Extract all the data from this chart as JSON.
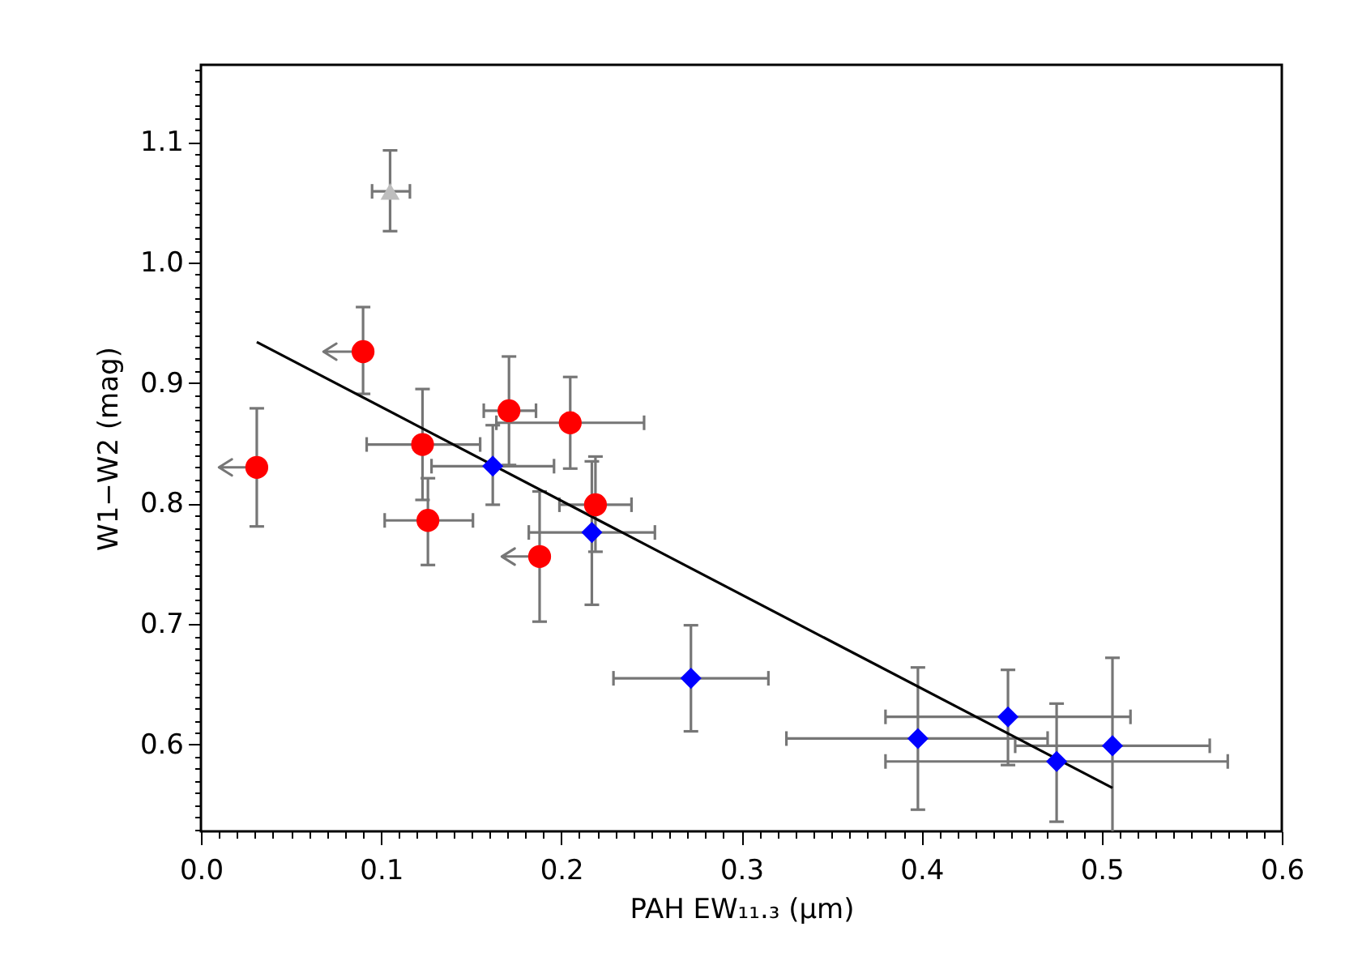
{
  "chart_data": {
    "type": "scatter",
    "xlabel": "PAH EW₁₁.₃ (μm)",
    "ylabel": "W1−W2 (mag)",
    "xlim": [
      0,
      0.6
    ],
    "ylim": [
      0.528,
      1.164
    ],
    "xticks": [
      {
        "value": 0,
        "label": "0.0"
      },
      {
        "value": 0.01,
        "label": null
      },
      {
        "value": 0.02,
        "label": null
      },
      {
        "value": 0.03,
        "label": null
      },
      {
        "value": 0.04,
        "label": null
      },
      {
        "value": 0.05,
        "label": null
      },
      {
        "value": 0.06,
        "label": null
      },
      {
        "value": 0.07,
        "label": null
      },
      {
        "value": 0.08,
        "label": null
      },
      {
        "value": 0.09,
        "label": null
      },
      0.1,
      {
        "value": 0.11,
        "label": null
      },
      {
        "value": 0.12,
        "label": null
      },
      {
        "value": 0.13,
        "label": null
      },
      {
        "value": 0.14,
        "label": null
      },
      {
        "value": 0.15,
        "label": null
      },
      {
        "value": 0.16,
        "label": null
      },
      {
        "value": 0.17,
        "label": null
      },
      {
        "value": 0.18,
        "label": null
      },
      {
        "value": 0.19,
        "label": null
      },
      0.2,
      {
        "value": 0.21,
        "label": null
      },
      {
        "value": 0.22,
        "label": null
      },
      {
        "value": 0.23,
        "label": null
      },
      {
        "value": 0.24,
        "label": null
      },
      {
        "value": 0.25,
        "label": null
      },
      {
        "value": 0.26,
        "label": null
      },
      {
        "value": 0.27,
        "label": null
      },
      {
        "value": 0.28,
        "label": null
      },
      {
        "value": 0.29,
        "label": null
      },
      0.3,
      {
        "value": 0.31,
        "label": null
      },
      {
        "value": 0.32,
        "label": null
      },
      {
        "value": 0.33,
        "label": null
      },
      {
        "value": 0.34,
        "label": null
      },
      {
        "value": 0.35,
        "label": null
      },
      {
        "value": 0.36,
        "label": null
      },
      {
        "value": 0.37,
        "label": null
      },
      {
        "value": 0.38,
        "label": null
      },
      {
        "value": 0.39,
        "label": null
      },
      0.4,
      {
        "value": 0.41,
        "label": null
      },
      {
        "value": 0.42,
        "label": null
      },
      {
        "value": 0.43,
        "label": null
      },
      {
        "value": 0.44,
        "label": null
      },
      {
        "value": 0.45,
        "label": null
      },
      {
        "value": 0.46,
        "label": null
      },
      {
        "value": 0.47,
        "label": null
      },
      {
        "value": 0.48,
        "label": null
      },
      {
        "value": 0.49,
        "label": null
      },
      0.5,
      {
        "value": 0.51,
        "label": null
      },
      {
        "value": 0.52,
        "label": null
      },
      {
        "value": 0.53,
        "label": null
      },
      {
        "value": 0.54,
        "label": null
      },
      {
        "value": 0.55,
        "label": null
      },
      {
        "value": 0.56,
        "label": null
      },
      {
        "value": 0.57,
        "label": null
      },
      {
        "value": 0.58,
        "label": null
      },
      {
        "value": 0.59,
        "label": null
      },
      0.6
    ],
    "yticks": [
      {
        "value": 0.53,
        "label": null
      },
      {
        "value": 0.54,
        "label": null
      },
      {
        "value": 0.55,
        "label": null
      },
      {
        "value": 0.56,
        "label": null
      },
      {
        "value": 0.57,
        "label": null
      },
      {
        "value": 0.58,
        "label": null
      },
      {
        "value": 0.59,
        "label": null
      },
      0.6,
      {
        "value": 0.61,
        "label": null
      },
      {
        "value": 0.62,
        "label": null
      },
      {
        "value": 0.63,
        "label": null
      },
      {
        "value": 0.64,
        "label": null
      },
      {
        "value": 0.65,
        "label": null
      },
      {
        "value": 0.66,
        "label": null
      },
      {
        "value": 0.67,
        "label": null
      },
      {
        "value": 0.68,
        "label": null
      },
      {
        "value": 0.69,
        "label": null
      },
      0.7,
      {
        "value": 0.71,
        "label": null
      },
      {
        "value": 0.72,
        "label": null
      },
      {
        "value": 0.73,
        "label": null
      },
      {
        "value": 0.74,
        "label": null
      },
      {
        "value": 0.75,
        "label": null
      },
      {
        "value": 0.76,
        "label": null
      },
      {
        "value": 0.77,
        "label": null
      },
      {
        "value": 0.78,
        "label": null
      },
      {
        "value": 0.79,
        "label": null
      },
      0.8,
      {
        "value": 0.81,
        "label": null
      },
      {
        "value": 0.82,
        "label": null
      },
      {
        "value": 0.83,
        "label": null
      },
      {
        "value": 0.84,
        "label": null
      },
      {
        "value": 0.85,
        "label": null
      },
      {
        "value": 0.86,
        "label": null
      },
      {
        "value": 0.87,
        "label": null
      },
      {
        "value": 0.88,
        "label": null
      },
      {
        "value": 0.89,
        "label": null
      },
      0.9,
      {
        "value": 0.91,
        "label": null
      },
      {
        "value": 0.92,
        "label": null
      },
      {
        "value": 0.93,
        "label": null
      },
      {
        "value": 0.94,
        "label": null
      },
      {
        "value": 0.95,
        "label": null
      },
      {
        "value": 0.96,
        "label": null
      },
      {
        "value": 0.97,
        "label": null
      },
      {
        "value": 0.98,
        "label": null
      },
      {
        "value": 0.99,
        "label": null
      },
      {
        "value": 1,
        "label": "1.0"
      },
      {
        "value": 1.01,
        "label": null
      },
      {
        "value": 1.02,
        "label": null
      },
      {
        "value": 1.03,
        "label": null
      },
      {
        "value": 1.04,
        "label": null
      },
      {
        "value": 1.05,
        "label": null
      },
      {
        "value": 1.06,
        "label": null
      },
      {
        "value": 1.07,
        "label": null
      },
      {
        "value": 1.08,
        "label": null
      },
      {
        "value": 1.09,
        "label": null
      },
      1.1,
      {
        "value": 1.11,
        "label": null
      },
      {
        "value": 1.12,
        "label": null
      },
      {
        "value": 1.13,
        "label": null
      },
      {
        "value": 1.14,
        "label": null
      },
      {
        "value": 1.15,
        "label": null
      },
      {
        "value": 1.16,
        "label": null
      }
    ],
    "series": [
      {
        "color": "#ff0000",
        "marker": "circle",
        "x": [
          0.031,
          0.09,
          0.123,
          0.126,
          0.171,
          0.188,
          0.205,
          0.219
        ],
        "values": [
          0.83,
          0.926,
          0.849,
          0.786,
          0.877,
          0.756,
          0.867,
          0.799
        ],
        "errors": [
          [
            0.781,
            0.879
          ],
          [
            0.891,
            0.963
          ],
          [
            0.803,
            0.895
          ],
          [
            0.749,
            0.821
          ],
          [
            0.832,
            0.922
          ],
          [
            0.702,
            0.81
          ],
          [
            0.829,
            0.905
          ],
          [
            0.76,
            0.839
          ]
        ],
        "xerrors": [
          [
            0.01,
            0.031
          ],
          [
            0.068,
            0.09
          ],
          [
            0.092,
            0.155
          ],
          [
            0.102,
            0.151
          ],
          [
            0.157,
            0.186
          ],
          [
            0.167,
            0.188
          ],
          [
            0.164,
            0.246
          ],
          [
            0.199,
            0.239
          ]
        ]
      },
      {
        "color": "#0000ff",
        "marker": "diamond",
        "x": [
          0.162,
          0.217,
          0.272,
          0.398,
          0.448,
          0.475,
          0.506
        ],
        "values": [
          0.831,
          0.776,
          0.655,
          0.605,
          0.623,
          0.586,
          0.599
        ],
        "errors": [
          [
            0.799,
            0.865
          ],
          [
            0.716,
            0.835
          ],
          [
            0.611,
            0.699
          ],
          [
            0.546,
            0.664
          ],
          [
            0.583,
            0.662
          ],
          [
            0.536,
            0.634
          ],
          [
            0.528,
            0.672
          ]
        ],
        "xerrors": [
          [
            0.128,
            0.196
          ],
          [
            0.182,
            0.252
          ],
          [
            0.229,
            0.315
          ],
          [
            0.325,
            0.47
          ],
          [
            0.38,
            0.516
          ],
          [
            0.38,
            0.57
          ],
          [
            0.452,
            0.56
          ]
        ]
      },
      {
        "color": "#bebebe",
        "marker": "triangle",
        "x": [
          0.105
        ],
        "values": [
          1.059
        ],
        "errors": [
          [
            1.026,
            1.093
          ]
        ],
        "xerrors": [
          [
            0.095,
            0.116
          ]
        ]
      },
      {
        "type": "line",
        "color": "#000000",
        "marker": "none",
        "line_style": "solid",
        "x": [
          0.031,
          0.506
        ],
        "values": [
          0.934,
          0.564
        ]
      }
    ]
  }
}
